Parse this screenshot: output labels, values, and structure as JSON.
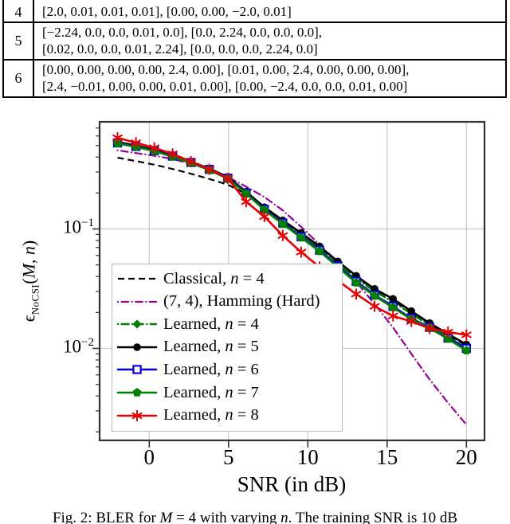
{
  "table": {
    "rows": [
      {
        "id": "4",
        "lines": [
          "[2.0, 0.01, 0.01, 0.01], [0.00, 0.00, −2.0, 0.01]"
        ]
      },
      {
        "id": "5",
        "lines": [
          "[−2.24, 0.0, 0.0, 0.01, 0.0], [0.0, 2.24, 0.0, 0.0, 0.0],",
          "[0.02, 0.0, 0.0, 0.01, 2.24], [0.0, 0.0, 0.0, 2.24, 0.0]"
        ]
      },
      {
        "id": "6",
        "lines": [
          "[0.00, 0.00, 0.00, 0.00, 2.4, 0.00], [0.01, 0.00, 2.4, 0.00, 0.00, 0.00],",
          "[2.4, −0.01, 0.00, 0.00, 0.01, 0.00], [0.00, −2.4, 0.0, 0.0, 0.01, 0.00]"
        ]
      }
    ]
  },
  "chart_data": {
    "type": "line",
    "xlabel": "SNR (in dB)",
    "ylabel": {
      "sym": "ϵ",
      "sub": "NoCSI",
      "open": "(",
      "M": "M",
      "comma": ", ",
      "n": "n",
      "close": ")"
    },
    "x_axis_scale": "linear",
    "y_axis_scale": "log",
    "xlim": [
      -3.1,
      21.1
    ],
    "ylim": [
      0.0017,
      0.79
    ],
    "grid": true,
    "legend_position": "lower left",
    "x_ticks": [
      0,
      5,
      10,
      15,
      20
    ],
    "x_tick_labels": [
      "0",
      "5",
      "10",
      "15",
      "20"
    ],
    "y_grid_values": [
      0.1,
      0.01
    ],
    "y_tick_labels": [
      {
        "base": "10",
        "exp": "−1"
      },
      {
        "base": "10",
        "exp": "−2"
      }
    ],
    "y_minor_ticks": [
      0.7,
      0.6,
      0.5,
      0.4,
      0.3,
      0.2,
      0.09,
      0.08,
      0.07,
      0.06,
      0.05,
      0.04,
      0.03,
      0.02,
      0.009,
      0.008,
      0.007,
      0.006,
      0.005,
      0.004,
      0.003,
      0.002
    ],
    "x": [
      -2,
      -0.84,
      0.32,
      1.47,
      2.63,
      3.79,
      4.95,
      6.11,
      7.26,
      8.42,
      9.58,
      10.74,
      11.89,
      13.05,
      14.21,
      15.37,
      16.53,
      17.68,
      18.84,
      20
    ],
    "series": [
      {
        "name": "Classical, n = 4",
        "color": "#000000",
        "dash": "8 5",
        "cap": "butt",
        "width": 2.2,
        "marker": "none",
        "values": [
          0.395,
          0.37,
          0.345,
          0.318,
          0.29,
          0.262,
          0.235,
          0.196,
          0.152,
          0.117,
          0.091,
          0.07,
          0.0525,
          0.0395,
          0.031,
          0.0252,
          0.02,
          0.016,
          0.0129,
          0.0105
        ]
      },
      {
        "name": "(7, 4), Hamming (Hard)",
        "color": "#990099",
        "dash": "0.1 4.5 8.5 4.5",
        "cap": "round",
        "width": 2.2,
        "marker": "none",
        "values": [
          0.455,
          0.432,
          0.41,
          0.385,
          0.352,
          0.312,
          0.272,
          0.226,
          0.185,
          0.143,
          0.104,
          0.074,
          0.052,
          0.036,
          0.0235,
          0.015,
          0.009,
          0.0055,
          0.0035,
          0.0023
        ]
      },
      {
        "name": "Learned, n = 4",
        "color": "#008000",
        "dash": "0.1 4.5 9 4.5",
        "cap": "round",
        "width": 2.4,
        "marker": "diamond",
        "values": [
          0.53,
          0.494,
          0.455,
          0.41,
          0.362,
          0.317,
          0.268,
          0.202,
          0.149,
          0.115,
          0.089,
          0.068,
          0.051,
          0.0385,
          0.03,
          0.0245,
          0.0195,
          0.0156,
          0.0126,
          0.01
        ]
      },
      {
        "name": "Learned, n = 5",
        "color": "#000000",
        "dash": "",
        "cap": "round",
        "width": 2.6,
        "marker": "circle",
        "values": [
          0.535,
          0.5,
          0.46,
          0.415,
          0.366,
          0.32,
          0.272,
          0.205,
          0.152,
          0.118,
          0.0925,
          0.0715,
          0.0535,
          0.0405,
          0.0315,
          0.026,
          0.0205,
          0.0163,
          0.0132,
          0.0108
        ]
      },
      {
        "name": "Learned, n = 6",
        "color": "#0000dd",
        "dash": "",
        "cap": "round",
        "width": 2.6,
        "marker": "square-open",
        "values": [
          0.525,
          0.49,
          0.452,
          0.407,
          0.36,
          0.315,
          0.266,
          0.2,
          0.146,
          0.112,
          0.086,
          0.0665,
          0.049,
          0.0365,
          0.028,
          0.0225,
          0.0178,
          0.015,
          0.0122,
          0.01
        ]
      },
      {
        "name": "Learned, n = 7",
        "color": "#008000",
        "dash": "",
        "cap": "round",
        "width": 2.6,
        "marker": "pentagon",
        "values": [
          0.52,
          0.486,
          0.448,
          0.403,
          0.356,
          0.311,
          0.263,
          0.198,
          0.144,
          0.11,
          0.0845,
          0.065,
          0.048,
          0.0355,
          0.0275,
          0.022,
          0.0175,
          0.0148,
          0.012,
          0.0096
        ]
      },
      {
        "name": "Learned, n = 8",
        "color": "#e60000",
        "dash": "",
        "cap": "round",
        "width": 2.6,
        "marker": "star",
        "values": [
          0.58,
          0.527,
          0.478,
          0.425,
          0.366,
          0.316,
          0.266,
          0.169,
          0.127,
          0.088,
          0.064,
          0.048,
          0.037,
          0.0285,
          0.0225,
          0.0187,
          0.0168,
          0.0147,
          0.0137,
          0.013
        ]
      }
    ]
  },
  "legend": {
    "entries": [
      {
        "text1": "Classical, ",
        "math": "n",
        "text2": " = 4"
      },
      {
        "text1": "(7, 4), Hamming (Hard)",
        "math": "",
        "text2": ""
      },
      {
        "text1": "Learned, ",
        "math": "n",
        "text2": " = 4"
      },
      {
        "text1": "Learned, ",
        "math": "n",
        "text2": " = 5"
      },
      {
        "text1": "Learned, ",
        "math": "n",
        "text2": " = 6"
      },
      {
        "text1": "Learned, ",
        "math": "n",
        "text2": " = 7"
      },
      {
        "text1": "Learned, ",
        "math": "n",
        "text2": " = 8"
      }
    ]
  },
  "caption": {
    "p1": "Fig. 2: BLER for ",
    "m1": "M",
    "p2": " = 4 with varying ",
    "m2": "n",
    "p3": ". The training SNR is 10 dB"
  }
}
